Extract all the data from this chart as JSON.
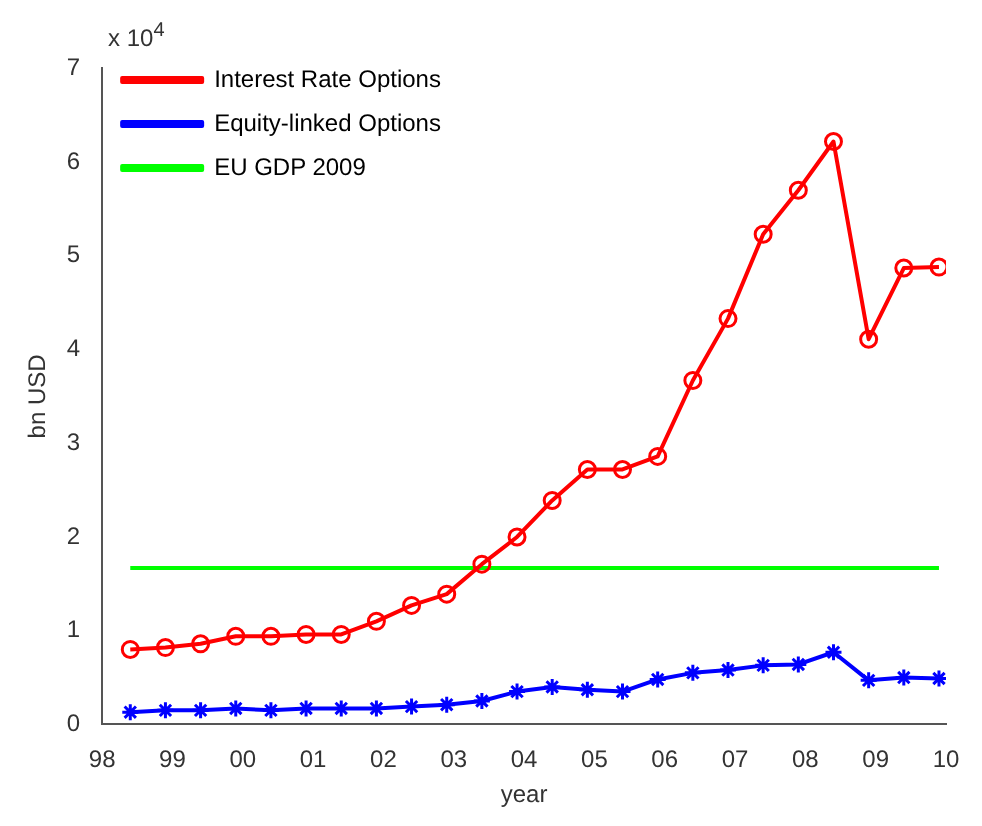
{
  "chart_data": {
    "type": "line",
    "xlabel": "year",
    "ylabel": "bn USD",
    "annotations": [
      "x 10$^{4}$"
    ],
    "xlim": [
      1998,
      2010
    ],
    "xticks": [
      {
        "value": 1998,
        "label": "98"
      },
      {
        "value": 1999,
        "label": "99"
      },
      {
        "value": 2000,
        "label": "00"
      },
      {
        "value": 2001,
        "label": "01"
      },
      {
        "value": 2002,
        "label": "02"
      },
      {
        "value": 2003,
        "label": "03"
      },
      {
        "value": 2004,
        "label": "04"
      },
      {
        "value": 2005,
        "label": "05"
      },
      {
        "value": 2006,
        "label": "06"
      },
      {
        "value": 2007,
        "label": "07"
      },
      {
        "value": 2008,
        "label": "08"
      },
      {
        "value": 2009,
        "label": "09"
      },
      {
        "value": 2010,
        "label": "10"
      }
    ],
    "ylim": [
      0,
      7
    ],
    "yticks": [
      0,
      1,
      2,
      3,
      4,
      5,
      6,
      7
    ],
    "x": [
      1998.4,
      1998.9,
      1999.4,
      1999.9,
      2000.4,
      2000.9,
      2001.4,
      2001.9,
      2002.4,
      2002.9,
      2003.4,
      2003.9,
      2004.4,
      2004.9,
      2005.4,
      2005.9,
      2006.4,
      2006.9,
      2007.4,
      2007.9,
      2008.4,
      2008.9,
      2009.4,
      2009.9
    ],
    "series": [
      {
        "name": "Interest Rate Options",
        "color": "#ff0000",
        "marker": "circle",
        "values": [
          0.8,
          0.82,
          0.86,
          0.94,
          0.94,
          0.96,
          0.96,
          1.1,
          1.27,
          1.39,
          1.71,
          2.0,
          2.39,
          2.72,
          2.72,
          2.86,
          3.67,
          4.33,
          5.23,
          5.7,
          6.22,
          4.11,
          4.87,
          4.88
        ]
      },
      {
        "name": "Equity-linked Options",
        "color": "#0000ff",
        "marker": "cross",
        "values": [
          0.13,
          0.15,
          0.15,
          0.17,
          0.15,
          0.17,
          0.17,
          0.17,
          0.19,
          0.21,
          0.25,
          0.35,
          0.4,
          0.37,
          0.35,
          0.48,
          0.55,
          0.58,
          0.63,
          0.64,
          0.77,
          0.47,
          0.5,
          0.49
        ]
      },
      {
        "name": "EU GDP 2009",
        "color": "#00ff00",
        "marker": "none",
        "x": [
          1998.4,
          2009.9
        ],
        "values": [
          1.67,
          1.67
        ]
      }
    ],
    "grid": false,
    "legend": "top left",
    "line_style": "solid"
  }
}
